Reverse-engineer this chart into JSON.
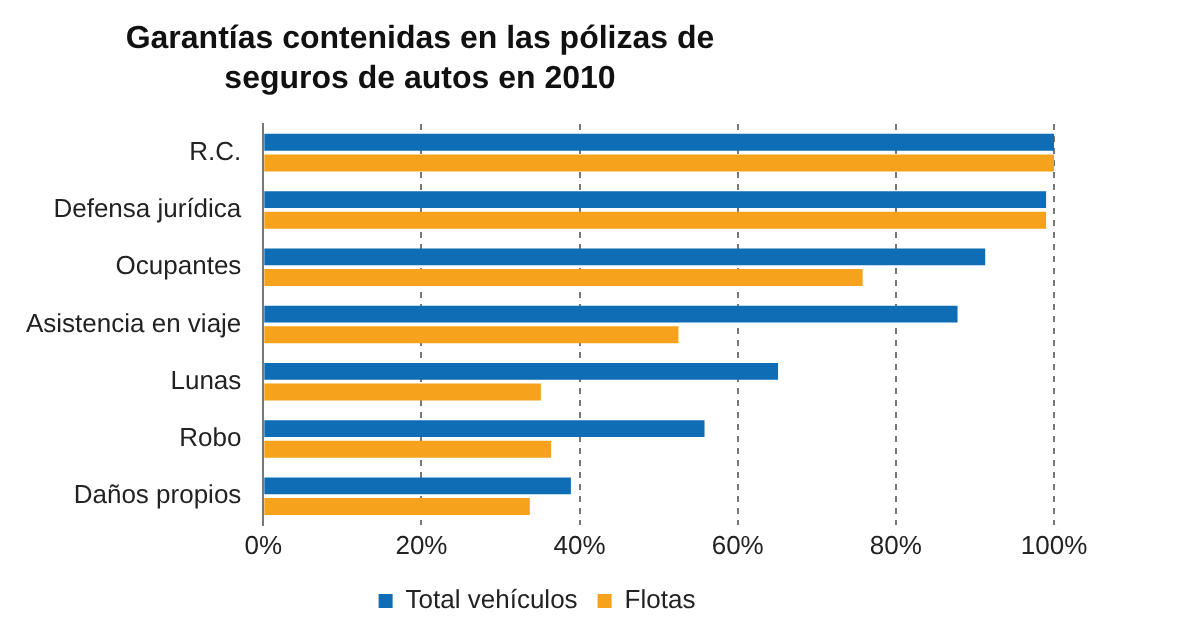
{
  "chart_data": {
    "type": "bar",
    "orientation": "horizontal",
    "title": "Garantías contenidas en las pólizas de seguros de autos en 2010",
    "categories": [
      "R.C.",
      "Defensa jurídica",
      "Ocupantes",
      "Asistencia en viaje",
      "Lunas",
      "Robo",
      "Daños propios"
    ],
    "series": [
      {
        "name": "Total vehículos",
        "color": "#0f6db5",
        "values": [
          100,
          99,
          91.3,
          87.8,
          65.1,
          55.8,
          38.9
        ]
      },
      {
        "name": "Flotas",
        "color": "#f6a21c",
        "values": [
          100,
          99,
          75.8,
          52.5,
          35.1,
          36.4,
          33.7
        ]
      }
    ],
    "xlim": [
      0,
      100
    ],
    "xticks": [
      {
        "value": 0,
        "label": "0%"
      },
      {
        "value": 20,
        "label": "20%"
      },
      {
        "value": 40,
        "label": "40%"
      },
      {
        "value": 60,
        "label": "60%"
      },
      {
        "value": 80,
        "label": "80%"
      },
      {
        "value": 100,
        "label": "100%"
      }
    ],
    "grid": "x",
    "legend": "bottom"
  }
}
